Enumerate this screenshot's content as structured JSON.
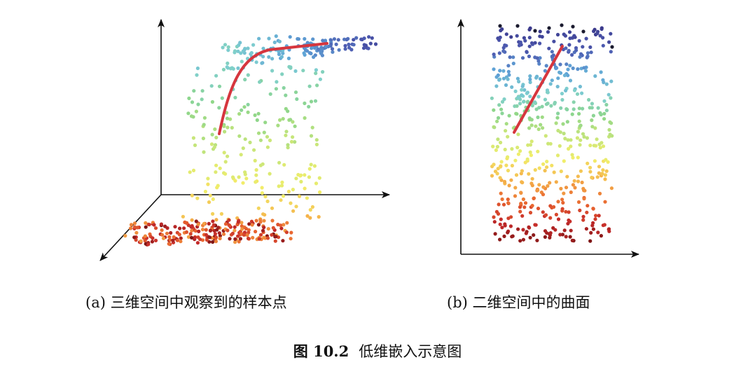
{
  "captions": {
    "a": "(a) 三维空间中观察到的样本点",
    "b": "(b) 二维空间中的曲面",
    "figure_label": "图 10.2",
    "figure_title": "低维嵌入示意图"
  },
  "colors": {
    "curve": "#d6363e",
    "axis": "#111111",
    "spectrum": [
      "#3b3a8c",
      "#4d5ab0",
      "#5fa3d6",
      "#7fcfcf",
      "#8ed68a",
      "#c8e67a",
      "#f2ee6a",
      "#f5b24a",
      "#e8632f",
      "#c42a2a",
      "#7a1414"
    ]
  }
}
